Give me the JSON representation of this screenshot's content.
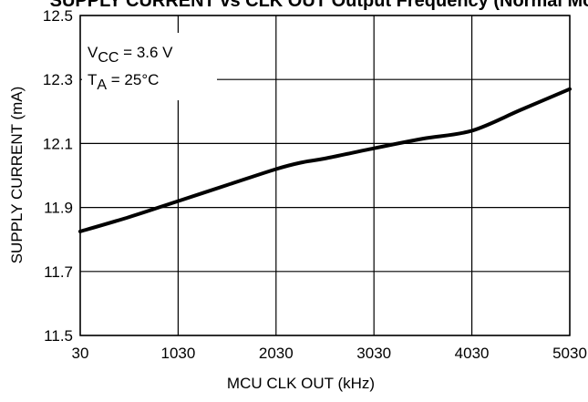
{
  "chart_data": {
    "type": "line",
    "title": "SUPPLY CURRENT vs CLK OUT Output Frequency (Normal Mode)",
    "xlabel": "MCU CLK OUT (kHz)",
    "ylabel": "SUPPLY CURRENT (mA)",
    "xlim": [
      30,
      5030
    ],
    "ylim": [
      11.5,
      12.5
    ],
    "x_ticks": [
      "30",
      "1030",
      "2030",
      "3030",
      "4030",
      "5030"
    ],
    "y_ticks": [
      "11.5",
      "11.7",
      "11.9",
      "12.1",
      "12.3",
      "12.5"
    ],
    "grid": true,
    "annotations": {
      "vcc": {
        "symbol": "V",
        "sub": "CC",
        "rest": " = 3.6 V"
      },
      "ta": {
        "symbol": "T",
        "sub": "A",
        "rest": " = 25°C"
      }
    },
    "series": [
      {
        "x": [
          30,
          530,
          1030,
          1530,
          2030,
          2280,
          2530,
          3030,
          3530,
          4030,
          4530,
          5030
        ],
        "values": [
          11.825,
          11.87,
          11.92,
          11.97,
          12.02,
          12.04,
          12.053,
          12.085,
          12.115,
          12.14,
          12.205,
          12.27
        ]
      }
    ]
  }
}
